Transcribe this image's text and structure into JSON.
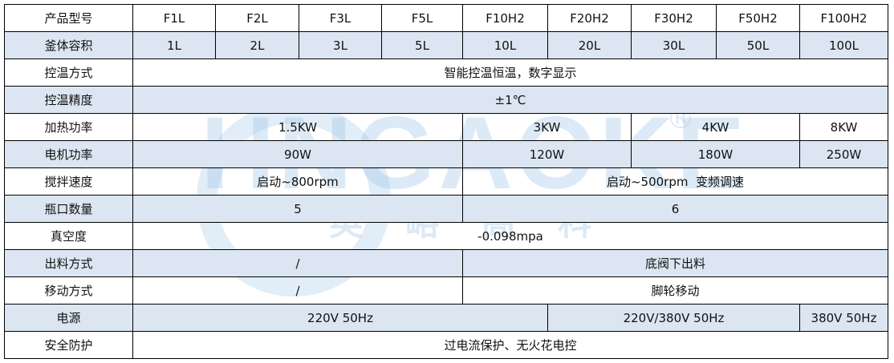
{
  "watermark": {
    "logo_text": "HNGAOKE",
    "logo_cn": [
      "英",
      "峪",
      "高",
      "科"
    ],
    "registered": "®",
    "color": "#9cc3e6"
  },
  "colors": {
    "alt_row": "#dce6f2",
    "border": "#000000"
  },
  "rows": {
    "model": {
      "label": "产品型号",
      "values": [
        "F1L",
        "F2L",
        "F3L",
        "F5L",
        "F10H2",
        "F20H2",
        "F30H2",
        "F50H2",
        "F100H2"
      ]
    },
    "volume": {
      "label": "釜体容积",
      "values": [
        "1L",
        "2L",
        "3L",
        "5L",
        "10L",
        "20L",
        "30L",
        "50L",
        "100L"
      ]
    },
    "temp_control": {
      "label": "控温方式",
      "value": "智能控温恒温，数字显示"
    },
    "temp_precision": {
      "label": "控温精度",
      "value": "±1℃"
    },
    "heating_power": {
      "label": "加热功率",
      "values": [
        "1.5KW",
        "3KW",
        "4KW",
        "8KW"
      ]
    },
    "motor_power": {
      "label": "电机功率",
      "values": [
        "90W",
        "120W",
        "180W",
        "250W"
      ]
    },
    "stir_speed": {
      "label": "搅拌速度",
      "values": [
        "启动~800rpm",
        "启动~500rpm  变频调速"
      ]
    },
    "necks": {
      "label": "瓶口数量",
      "values": [
        "5",
        "6"
      ]
    },
    "vacuum": {
      "label": "真空度",
      "value": "-0.098mpa"
    },
    "discharge": {
      "label": "出料方式",
      "values": [
        "/",
        "底阀下出料"
      ]
    },
    "movement": {
      "label": "移动方式",
      "values": [
        "/",
        "脚轮移动"
      ]
    },
    "power_supply": {
      "label": "电源",
      "values": [
        "220V 50Hz",
        "220V/380V 50Hz",
        "380V 50Hz"
      ]
    },
    "safety": {
      "label": "安全防护",
      "value": "过电流保护、无火花电控"
    }
  }
}
